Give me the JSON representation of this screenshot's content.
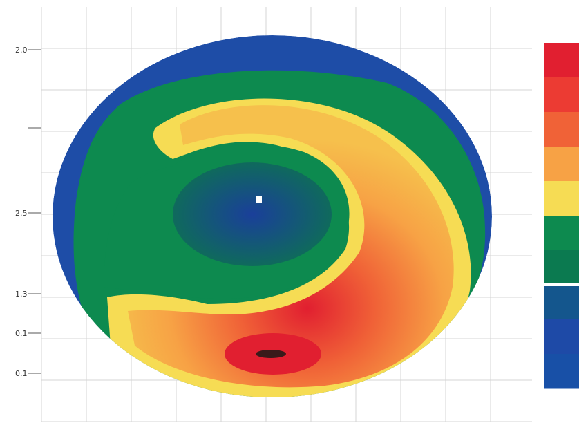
{
  "chart_data": {
    "type": "heatmap",
    "title": "",
    "xlabel": "",
    "ylabel": "",
    "grid": true,
    "legend": "right",
    "y_tick_labels": [
      "2.0",
      "",
      "2.5",
      "1.3",
      "0.1",
      "0.1"
    ],
    "colorscale": {
      "colors": [
        "#e11f30",
        "#ec3b33",
        "#f06237",
        "#f7a245",
        "#f6dc54",
        "#0d8a4f",
        "#0b7a50",
        "#14568d",
        "#1e4aa7",
        "#1850a7"
      ],
      "min_label": "",
      "max_label": ""
    },
    "map": {
      "regions": [
        {
          "name": "outer-ring",
          "color": "#1e4da7"
        },
        {
          "name": "mid-ring",
          "color": "#0d8a4f"
        },
        {
          "name": "warm-crescent-outer",
          "color": "#f6dc54"
        },
        {
          "name": "warm-crescent-inner",
          "color": "#f07b3c"
        },
        {
          "name": "hot-spot",
          "color": "#e11f30"
        },
        {
          "name": "center",
          "color": "#1e4da7"
        }
      ]
    }
  }
}
